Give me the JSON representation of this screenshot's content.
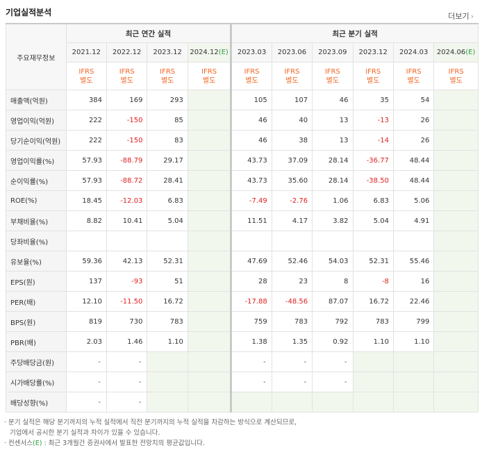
{
  "title": "기업실적분석",
  "more_label": "더보기",
  "more_arrow": "›",
  "corner_label": "주요재무정보",
  "group_annual": "최근 연간 실적",
  "group_quarter": "최근 분기 실적",
  "periods": [
    "2021.12",
    "2022.12",
    "2023.12",
    "2024.12",
    "2023.03",
    "2023.06",
    "2023.09",
    "2023.12",
    "2024.03",
    "2024.06"
  ],
  "estimate_mark": "(E)",
  "ifrs_top": "IFRS",
  "ifrs_bottom": "별도",
  "rows": [
    {
      "label": "매출액(억원)",
      "values": [
        "384",
        "169",
        "293",
        "",
        "105",
        "107",
        "46",
        "35",
        "54",
        ""
      ]
    },
    {
      "label": "영업이익(억원)",
      "values": [
        "222",
        "-150",
        "85",
        "",
        "46",
        "40",
        "13",
        "-13",
        "26",
        ""
      ]
    },
    {
      "label": "당기순이익(억원)",
      "values": [
        "222",
        "-150",
        "83",
        "",
        "46",
        "38",
        "13",
        "-14",
        "26",
        ""
      ]
    },
    {
      "label": "영업이익률(%)",
      "values": [
        "57.93",
        "-88.79",
        "29.17",
        "",
        "43.73",
        "37.09",
        "28.14",
        "-36.77",
        "48.44",
        ""
      ]
    },
    {
      "label": "순이익률(%)",
      "values": [
        "57.93",
        "-88.72",
        "28.41",
        "",
        "43.73",
        "35.60",
        "28.14",
        "-38.50",
        "48.44",
        ""
      ]
    },
    {
      "label": "ROE(%)",
      "values": [
        "18.45",
        "-12.03",
        "6.83",
        "",
        "-7.49",
        "-2.76",
        "1.06",
        "6.83",
        "5.06",
        ""
      ]
    },
    {
      "label": "부채비율(%)",
      "values": [
        "8.82",
        "10.41",
        "5.04",
        "",
        "11.51",
        "4.17",
        "3.82",
        "5.04",
        "4.91",
        ""
      ]
    },
    {
      "label": "당좌비율(%)",
      "values": [
        "",
        "",
        "",
        "",
        "",
        "",
        "",
        "",
        "",
        ""
      ]
    },
    {
      "label": "유보율(%)",
      "values": [
        "59.36",
        "42.13",
        "52.31",
        "",
        "47.69",
        "52.46",
        "54.03",
        "52.31",
        "55.46",
        ""
      ]
    },
    {
      "label": "EPS(원)",
      "values": [
        "137",
        "-93",
        "51",
        "",
        "28",
        "23",
        "8",
        "-8",
        "16",
        ""
      ]
    },
    {
      "label": "PER(배)",
      "values": [
        "12.10",
        "-11.50",
        "16.72",
        "",
        "-17.88",
        "-48.56",
        "87.07",
        "16.72",
        "22.46",
        ""
      ]
    },
    {
      "label": "BPS(원)",
      "values": [
        "819",
        "730",
        "783",
        "",
        "759",
        "783",
        "792",
        "783",
        "799",
        ""
      ]
    },
    {
      "label": "PBR(배)",
      "values": [
        "2.03",
        "1.46",
        "1.10",
        "",
        "1.38",
        "1.35",
        "0.92",
        "1.10",
        "1.10",
        ""
      ]
    },
    {
      "label": "주당배당금(원)",
      "values": [
        "-",
        "-",
        "",
        "",
        "-",
        "-",
        "-",
        "",
        "",
        ""
      ]
    },
    {
      "label": "시가배당률(%)",
      "values": [
        "-",
        "-",
        "",
        "",
        "-",
        "-",
        "-",
        "",
        "",
        ""
      ]
    },
    {
      "label": "배당성향(%)",
      "values": [
        "-",
        "-",
        "",
        "",
        "",
        "",
        "",
        "",
        "",
        ""
      ]
    }
  ],
  "notes": [
    "· 분기 실적은 해당 분기까지의 누적 실적에서 직전 분기까지의 누적 실적을 차감하는 방식으로 계산되므로,",
    "  기업에서 공시한 분기 실적과 차이가 있을 수 있습니다.",
    "· 컨센서스"
  ],
  "consensus_e": "(E)",
  "consensus_rest": ": 최근 3개월간 증권사에서 발표한 전망치의 평균값입니다.",
  "colors": {
    "ifrs": "#f26522",
    "negative": "#e02020",
    "estimate_bg": "#f2f7ee",
    "estimate_mark": "#2e9e3e"
  }
}
